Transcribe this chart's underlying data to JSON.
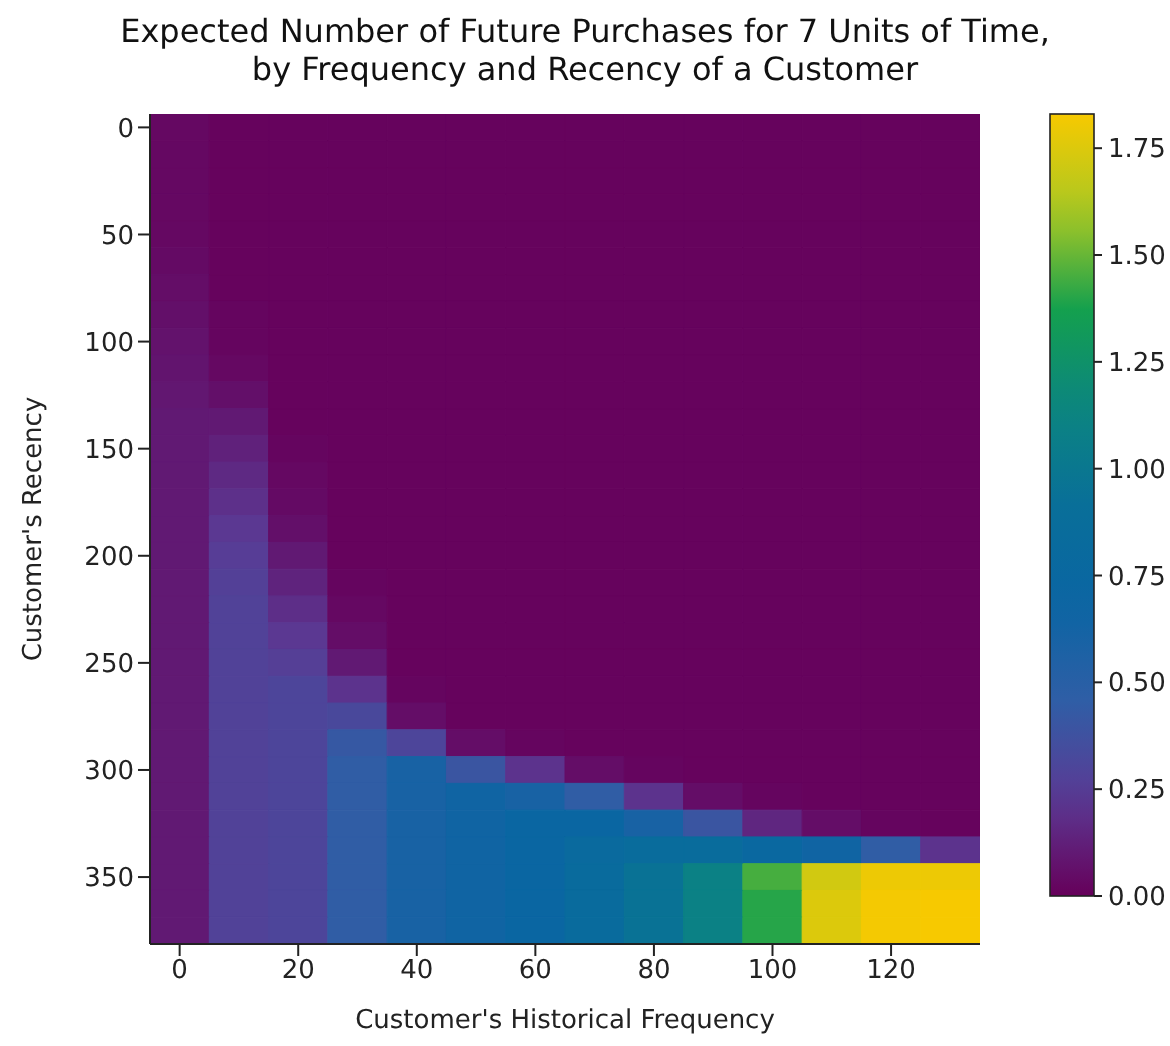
{
  "chart_data": {
    "type": "heatmap",
    "title": "Expected Number of Future Purchases for 7 Units of Time,\nby Frequency and Recency of a Customer",
    "xlabel": "Customer's Historical Frequency",
    "ylabel": "Customer's Recency",
    "clim": [
      0,
      1.83
    ],
    "cticks": [
      {
        "value": 0,
        "label": "0.00"
      },
      {
        "value": 0.25,
        "label": "0.25"
      },
      {
        "value": 0.5,
        "label": "0.50"
      },
      {
        "value": 0.75,
        "label": "0.75"
      },
      {
        "value": 1,
        "label": "1.00"
      },
      {
        "value": 1.25,
        "label": "1.25"
      },
      {
        "value": 1.5,
        "label": "1.50"
      },
      {
        "value": 1.75,
        "label": "1.75"
      }
    ],
    "categories": [
      "0",
      null,
      "20",
      null,
      "40",
      null,
      "60",
      null,
      "80",
      null,
      "100",
      null,
      "120",
      null
    ],
    "y_categories": [
      "0",
      null,
      null,
      null,
      "50",
      null,
      null,
      null,
      "100",
      null,
      null,
      null,
      "150",
      null,
      null,
      null,
      "200",
      null,
      null,
      null,
      "250",
      null,
      null,
      null,
      "300",
      null,
      null,
      null,
      "350",
      null,
      null
    ],
    "cells": [
      [
        0.03,
        0.01,
        0.01,
        0.01,
        0.01,
        0.01,
        0.01,
        0.01,
        0.01,
        0.01,
        0.01,
        0.01,
        0.01,
        0.01
      ],
      [
        0.03,
        0.01,
        0.01,
        0.01,
        0.01,
        0.01,
        0.01,
        0.01,
        0.01,
        0.01,
        0.01,
        0.01,
        0.01,
        0.01
      ],
      [
        0.03,
        0.01,
        0.01,
        0.01,
        0.01,
        0.01,
        0.01,
        0.01,
        0.01,
        0.01,
        0.01,
        0.01,
        0.01,
        0.01
      ],
      [
        0.03,
        0.01,
        0.01,
        0.01,
        0.01,
        0.01,
        0.01,
        0.01,
        0.01,
        0.01,
        0.01,
        0.01,
        0.01,
        0.01
      ],
      [
        0.03,
        0.01,
        0.01,
        0.01,
        0.01,
        0.01,
        0.01,
        0.01,
        0.01,
        0.01,
        0.01,
        0.01,
        0.01,
        0.01
      ],
      [
        0.04,
        0.01,
        0.01,
        0.01,
        0.01,
        0.01,
        0.01,
        0.01,
        0.01,
        0.01,
        0.01,
        0.01,
        0.01,
        0.01
      ],
      [
        0.05,
        0.01,
        0.01,
        0.01,
        0.01,
        0.01,
        0.01,
        0.01,
        0.01,
        0.01,
        0.01,
        0.01,
        0.01,
        0.01
      ],
      [
        0.06,
        0.02,
        0.01,
        0.01,
        0.01,
        0.01,
        0.01,
        0.01,
        0.01,
        0.01,
        0.01,
        0.01,
        0.01,
        0.01
      ],
      [
        0.07,
        0.02,
        0.01,
        0.01,
        0.01,
        0.01,
        0.01,
        0.01,
        0.01,
        0.01,
        0.01,
        0.01,
        0.01,
        0.01
      ],
      [
        0.08,
        0.03,
        0.01,
        0.01,
        0.01,
        0.01,
        0.01,
        0.01,
        0.01,
        0.01,
        0.01,
        0.01,
        0.01,
        0.01
      ],
      [
        0.09,
        0.06,
        0.01,
        0.01,
        0.01,
        0.01,
        0.01,
        0.01,
        0.01,
        0.01,
        0.01,
        0.01,
        0.01,
        0.01
      ],
      [
        0.1,
        0.1,
        0.01,
        0.01,
        0.01,
        0.01,
        0.01,
        0.01,
        0.01,
        0.01,
        0.01,
        0.01,
        0.01,
        0.01
      ],
      [
        0.1,
        0.13,
        0.02,
        0.01,
        0.01,
        0.01,
        0.01,
        0.01,
        0.01,
        0.01,
        0.01,
        0.01,
        0.01,
        0.01
      ],
      [
        0.1,
        0.16,
        0.03,
        0.01,
        0.01,
        0.01,
        0.01,
        0.01,
        0.01,
        0.01,
        0.01,
        0.01,
        0.01,
        0.01
      ],
      [
        0.1,
        0.19,
        0.04,
        0.01,
        0.01,
        0.01,
        0.01,
        0.01,
        0.01,
        0.01,
        0.01,
        0.01,
        0.01,
        0.01
      ],
      [
        0.1,
        0.22,
        0.06,
        0.01,
        0.01,
        0.01,
        0.01,
        0.01,
        0.01,
        0.01,
        0.01,
        0.01,
        0.01,
        0.01
      ],
      [
        0.1,
        0.25,
        0.1,
        0.01,
        0.01,
        0.01,
        0.01,
        0.01,
        0.01,
        0.01,
        0.01,
        0.01,
        0.01,
        0.01
      ],
      [
        0.1,
        0.27,
        0.14,
        0.02,
        0.01,
        0.01,
        0.01,
        0.01,
        0.01,
        0.01,
        0.01,
        0.01,
        0.01,
        0.01
      ],
      [
        0.1,
        0.28,
        0.18,
        0.03,
        0.01,
        0.01,
        0.01,
        0.01,
        0.01,
        0.01,
        0.01,
        0.01,
        0.01,
        0.01
      ],
      [
        0.1,
        0.28,
        0.22,
        0.05,
        0.01,
        0.01,
        0.01,
        0.01,
        0.01,
        0.01,
        0.01,
        0.01,
        0.01,
        0.01
      ],
      [
        0.1,
        0.28,
        0.26,
        0.1,
        0.01,
        0.01,
        0.01,
        0.01,
        0.01,
        0.01,
        0.01,
        0.01,
        0.01,
        0.01
      ],
      [
        0.1,
        0.28,
        0.3,
        0.2,
        0.02,
        0.01,
        0.01,
        0.01,
        0.01,
        0.01,
        0.01,
        0.01,
        0.01,
        0.01
      ],
      [
        0.1,
        0.28,
        0.3,
        0.32,
        0.05,
        0.01,
        0.01,
        0.01,
        0.01,
        0.01,
        0.01,
        0.01,
        0.01,
        0.01
      ],
      [
        0.1,
        0.28,
        0.3,
        0.42,
        0.3,
        0.05,
        0.02,
        0.01,
        0.01,
        0.01,
        0.01,
        0.01,
        0.01,
        0.01
      ],
      [
        0.1,
        0.28,
        0.3,
        0.45,
        0.6,
        0.4,
        0.2,
        0.05,
        0.02,
        0.01,
        0.01,
        0.01,
        0.01,
        0.01
      ],
      [
        0.1,
        0.28,
        0.3,
        0.45,
        0.6,
        0.65,
        0.6,
        0.45,
        0.2,
        0.05,
        0.02,
        0.01,
        0.01,
        0.01
      ],
      [
        0.1,
        0.28,
        0.3,
        0.45,
        0.6,
        0.65,
        0.7,
        0.72,
        0.6,
        0.4,
        0.15,
        0.05,
        0.02,
        0.01
      ],
      [
        0.1,
        0.28,
        0.3,
        0.45,
        0.6,
        0.65,
        0.72,
        0.8,
        0.85,
        0.85,
        0.75,
        0.65,
        0.45,
        0.2
      ],
      [
        0.1,
        0.28,
        0.3,
        0.45,
        0.6,
        0.65,
        0.72,
        0.82,
        0.95,
        1.1,
        1.45,
        1.72,
        1.8,
        1.8
      ],
      [
        0.1,
        0.28,
        0.3,
        0.45,
        0.6,
        0.65,
        0.72,
        0.82,
        0.95,
        1.1,
        1.4,
        1.75,
        1.82,
        1.83
      ],
      [
        0.1,
        0.28,
        0.3,
        0.45,
        0.6,
        0.65,
        0.72,
        0.82,
        0.95,
        1.1,
        1.4,
        1.75,
        1.82,
        1.83
      ]
    ]
  }
}
